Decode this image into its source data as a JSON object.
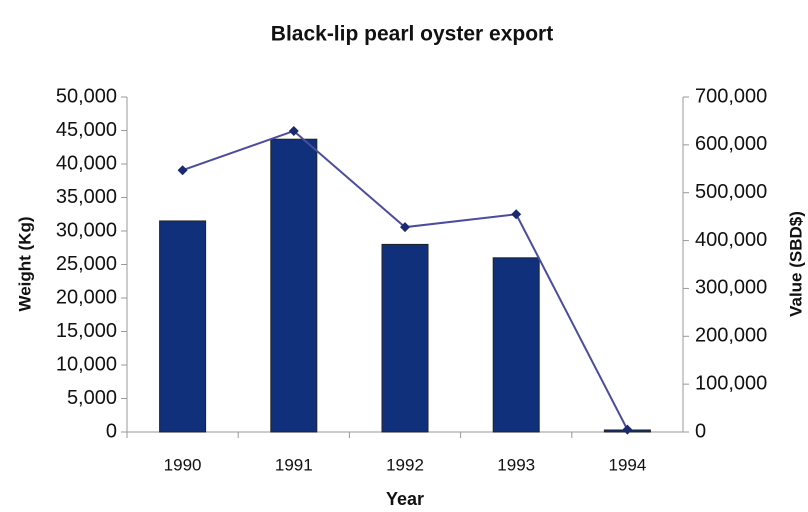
{
  "chart_data": {
    "type": "bar",
    "title": "Black-lip pearl oyster export",
    "x_label": "Year",
    "y_label": "Weight (Kg)",
    "y2_label": "Value (SBD$)",
    "categories": [
      "1990",
      "1991",
      "1992",
      "1993",
      "1994"
    ],
    "series": [
      {
        "type": "bar",
        "color": "#10307c",
        "values": [
          31500,
          43700,
          28000,
          26000,
          300
        ]
      },
      {
        "type": "line",
        "color": "#4b4c9e",
        "axis": "y2",
        "values": [
          547000,
          629000,
          428000,
          455000,
          5000
        ]
      }
    ],
    "ylim": [
      0,
      50000
    ],
    "yticks": [
      0,
      {
        "value": 5000,
        "label": "5,000"
      },
      {
        "value": 10000,
        "label": "10,000"
      },
      {
        "value": 15000,
        "label": "15,000"
      },
      {
        "value": 20000,
        "label": "20,000"
      },
      {
        "value": 25000,
        "label": "25,000"
      },
      {
        "value": 30000,
        "label": "30,000"
      },
      {
        "value": 35000,
        "label": "35,000"
      },
      {
        "value": 40000,
        "label": "40,000"
      },
      {
        "value": 45000,
        "label": "45,000"
      },
      {
        "value": 50000,
        "label": "50,000"
      }
    ],
    "y2lim": [
      0,
      700000
    ],
    "y2ticks": [
      0,
      {
        "value": 100000,
        "label": "100,000"
      },
      {
        "value": 200000,
        "label": "200,000"
      },
      {
        "value": 300000,
        "label": "300,000"
      },
      {
        "value": 400000,
        "label": "400,000"
      },
      {
        "value": 500000,
        "label": "500,000"
      },
      {
        "value": 600000,
        "label": "600,000"
      },
      {
        "value": 700000,
        "label": "700,000"
      }
    ],
    "grid": false
  }
}
